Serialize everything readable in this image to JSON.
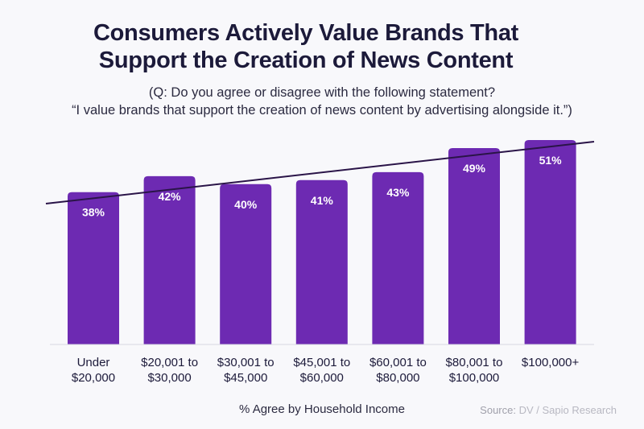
{
  "chart_data": {
    "type": "bar",
    "title": "Consumers Actively Value Brands That Support the Creation of News Content",
    "title_lines": [
      "Consumers Actively Value Brands That",
      "Support the Creation of News Content"
    ],
    "subtitle_lines": [
      "(Q: Do you agree or disagree with the following statement?",
      "“I value brands that support the creation of news content by advertising alongside it.”)"
    ],
    "categories": [
      [
        "Under",
        "$20,000"
      ],
      [
        "$20,001 to",
        "$30,000"
      ],
      [
        "$30,001 to",
        "$45,000"
      ],
      [
        "$45,001 to",
        "$60,000"
      ],
      [
        "$60,001 to",
        "$80,000"
      ],
      [
        "$80,001 to",
        "$100,000"
      ],
      [
        "$100,000+"
      ]
    ],
    "values": [
      38,
      42,
      40,
      41,
      43,
      49,
      51
    ],
    "data_labels": [
      "38%",
      "42%",
      "40%",
      "41%",
      "43%",
      "49%",
      "51%"
    ],
    "xlabel": "% Agree by Household Income",
    "trendline": true,
    "ylim": [
      0,
      51
    ],
    "grid": false,
    "colors": {
      "bar": "#6d2ab2",
      "trendline": "#2a1448",
      "title": "#1c1a3a"
    }
  },
  "source": {
    "label": "Source:",
    "text": " DV / Sapio Research"
  }
}
